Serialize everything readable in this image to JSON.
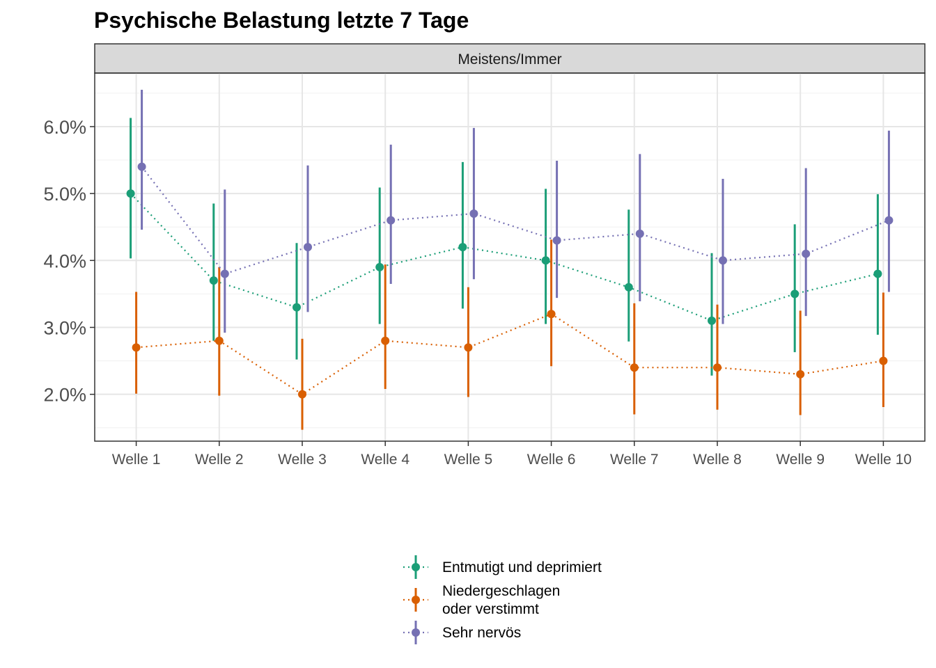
{
  "title": "Psychische Belastung letzte 7 Tage",
  "chart_data": {
    "type": "scatter",
    "title": "Psychische Belastung letzte 7 Tage",
    "facet": "Meistens/Immer",
    "xlabel": "",
    "ylabel": "",
    "categories": [
      "Welle 1",
      "Welle 2",
      "Welle 3",
      "Welle 4",
      "Welle 5",
      "Welle 6",
      "Welle 7",
      "Welle 8",
      "Welle 9",
      "Welle 10"
    ],
    "yticks": [
      "2.0%",
      "3.0%",
      "4.0%",
      "5.0%",
      "6.0%"
    ],
    "ylim": [
      1.3,
      6.8
    ],
    "grid": true,
    "legend_position": "bottom",
    "series": [
      {
        "name": "Entmutigt und deprimiert",
        "color": "#1b9e77",
        "values": [
          5.0,
          3.7,
          3.3,
          3.9,
          4.2,
          4.0,
          3.6,
          3.1,
          3.5,
          3.8
        ],
        "lower": [
          4.03,
          2.8,
          2.52,
          3.05,
          3.28,
          3.05,
          2.79,
          2.28,
          2.63,
          2.89
        ],
        "upper": [
          6.13,
          4.85,
          4.26,
          5.09,
          5.47,
          5.07,
          4.76,
          4.11,
          4.54,
          4.99
        ]
      },
      {
        "name": "Niedergeschlagen\noder verstimmt",
        "color": "#d95f02",
        "values": [
          2.7,
          2.8,
          2.0,
          2.8,
          2.7,
          3.2,
          2.4,
          2.4,
          2.3,
          2.5
        ],
        "lower": [
          2.01,
          1.98,
          1.47,
          2.08,
          1.96,
          2.42,
          1.7,
          1.77,
          1.69,
          1.81
        ],
        "upper": [
          3.53,
          3.9,
          2.83,
          3.94,
          3.6,
          4.31,
          3.36,
          3.34,
          3.25,
          3.52
        ]
      },
      {
        "name": "Sehr nervös",
        "color": "#7570b3",
        "values": [
          5.4,
          3.8,
          4.2,
          4.6,
          4.7,
          4.3,
          4.4,
          4.0,
          4.1,
          4.6
        ],
        "lower": [
          4.46,
          2.92,
          3.23,
          3.65,
          3.72,
          3.44,
          3.39,
          3.05,
          3.17,
          3.53
        ],
        "upper": [
          6.55,
          5.06,
          5.42,
          5.73,
          5.98,
          5.49,
          5.59,
          5.22,
          5.38,
          5.94
        ]
      }
    ]
  }
}
